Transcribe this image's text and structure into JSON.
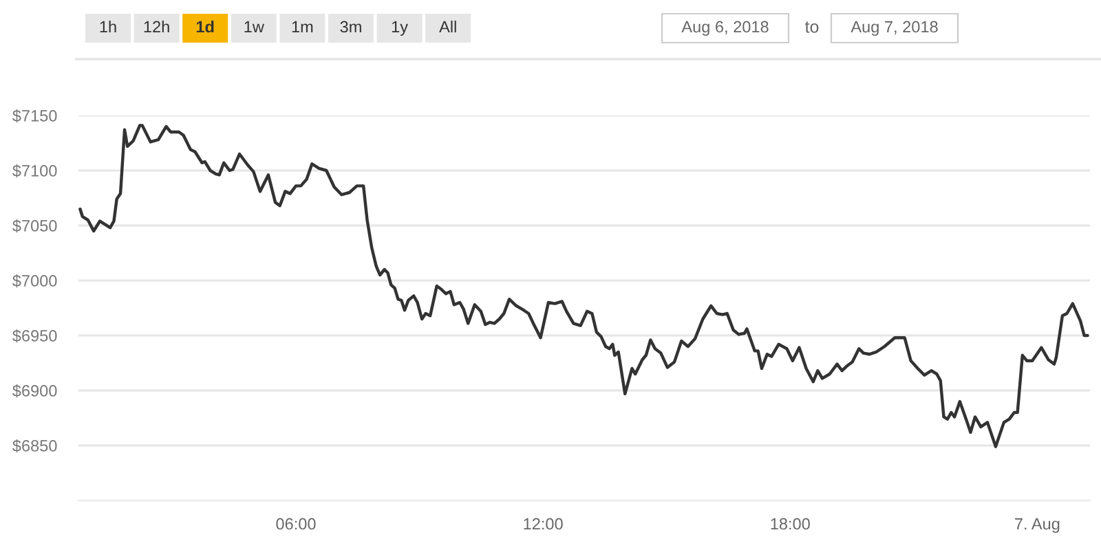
{
  "chart_data": {
    "type": "line",
    "annotations": [
      "1h",
      "12h",
      "1d",
      "1w",
      "1m",
      "3m",
      "1y",
      "All",
      "Aug 6, 2018",
      "to",
      "Aug 7, 2018"
    ],
    "x": [
      0.76,
      0.82,
      0.95,
      1.09,
      1.24,
      1.49,
      1.58,
      1.65,
      1.74,
      1.84,
      1.91,
      2.05,
      2.21,
      2.27,
      2.47,
      2.66,
      2.85,
      2.96,
      3.16,
      3.27,
      3.44,
      3.55,
      3.72,
      3.79,
      3.92,
      4.05,
      4.14,
      4.25,
      4.39,
      4.47,
      4.63,
      4.83,
      4.97,
      5.13,
      5.33,
      5.5,
      5.61,
      5.74,
      5.86,
      6.0,
      6.12,
      6.26,
      6.39,
      6.56,
      6.74,
      6.93,
      7.11,
      7.3,
      7.48,
      7.64,
      7.73,
      7.84,
      7.95,
      8.04,
      8.15,
      8.23,
      8.31,
      8.4,
      8.48,
      8.56,
      8.64,
      8.73,
      8.86,
      8.95,
      9.06,
      9.15,
      9.26,
      9.42,
      9.53,
      9.64,
      9.75,
      9.84,
      9.98,
      10.07,
      10.18,
      10.34,
      10.49,
      10.6,
      10.71,
      10.82,
      10.94,
      11.05,
      11.18,
      11.35,
      11.49,
      11.65,
      11.79,
      11.94,
      12.13,
      12.29,
      12.46,
      12.57,
      12.74,
      12.91,
      13.07,
      13.19,
      13.3,
      13.41,
      13.52,
      13.61,
      13.69,
      13.74,
      13.83,
      13.99,
      14.16,
      14.24,
      14.41,
      14.5,
      14.61,
      14.72,
      14.86,
      15.02,
      15.19,
      15.36,
      15.52,
      15.69,
      15.88,
      16.08,
      16.22,
      16.36,
      16.47,
      16.62,
      16.75,
      16.89,
      16.95,
      17.14,
      17.22,
      17.31,
      17.44,
      17.55,
      17.72,
      17.92,
      18.06,
      18.22,
      18.39,
      18.56,
      18.67,
      18.78,
      18.96,
      19.14,
      19.26,
      19.37,
      19.51,
      19.67,
      19.78,
      19.93,
      20.09,
      20.29,
      20.54,
      20.78,
      20.93,
      21.1,
      21.26,
      21.43,
      21.56,
      21.65,
      21.73,
      21.82,
      21.91,
      21.99,
      22.12,
      22.27,
      22.38,
      22.49,
      22.63,
      22.79,
      22.99,
      23.19,
      23.32,
      23.44,
      23.52,
      23.64,
      23.75,
      23.88,
      24.1,
      24.27,
      24.41,
      24.46,
      24.61,
      24.72,
      24.86,
      25.05,
      25.14,
      25.22
    ],
    "series": [
      {
        "color": "#333333",
        "values": [
          7065,
          7058,
          7055,
          7045,
          7054,
          7048,
          7054,
          7074,
          7079,
          7137,
          7122,
          7127,
          7141,
          7141,
          7126,
          7128,
          7140,
          7135,
          7135,
          7132,
          7119,
          7117,
          7107,
          7108,
          7100,
          7097,
          7096,
          7107,
          7100,
          7101,
          7115,
          7105,
          7099,
          7081,
          7096,
          7071,
          7068,
          7081,
          7079,
          7086,
          7086,
          7092,
          7106,
          7102,
          7100,
          7085,
          7078,
          7080,
          7086,
          7086,
          7055,
          7030,
          7013,
          7005,
          7010,
          7007,
          6996,
          6993,
          6983,
          6982,
          6973,
          6982,
          6986,
          6980,
          6965,
          6970,
          6968,
          6995,
          6992,
          6988,
          6990,
          6978,
          6980,
          6974,
          6961,
          6978,
          6972,
          6960,
          6962,
          6961,
          6965,
          6970,
          6983,
          6977,
          6974,
          6970,
          6959,
          6948,
          6980,
          6979,
          6981,
          6972,
          6961,
          6959,
          6972,
          6970,
          6953,
          6949,
          6940,
          6938,
          6942,
          6932,
          6935,
          6897,
          6920,
          6915,
          6928,
          6932,
          6946,
          6938,
          6934,
          6921,
          6926,
          6945,
          6940,
          6947,
          6965,
          6977,
          6970,
          6969,
          6970,
          6955,
          6951,
          6952,
          6956,
          6936,
          6936,
          6920,
          6933,
          6931,
          6942,
          6938,
          6927,
          6939,
          6920,
          6908,
          6918,
          6911,
          6915,
          6924,
          6918,
          6922,
          6926,
          6938,
          6934,
          6933,
          6935,
          6940,
          6948,
          6948,
          6927,
          6920,
          6914,
          6918,
          6915,
          6909,
          6876,
          6874,
          6880,
          6876,
          6890,
          6874,
          6862,
          6876,
          6867,
          6871,
          6849,
          6871,
          6874,
          6880,
          6880,
          6932,
          6927,
          6927,
          6939,
          6928,
          6924,
          6930,
          6968,
          6970,
          6979,
          6963,
          6950,
          6950
        ]
      }
    ],
    "xlim": [
      0.72,
      25.28
    ],
    "xticks": [
      {
        "value": 6,
        "label": "06:00"
      },
      {
        "value": 12,
        "label": "12:00"
      },
      {
        "value": 18,
        "label": "18:00"
      },
      {
        "value": 24,
        "label": "7. Aug"
      }
    ],
    "ylim": [
      6800,
      7150
    ],
    "yticks": [
      {
        "value": 6850,
        "label": "$6850"
      },
      {
        "value": 6900,
        "label": "$6900"
      },
      {
        "value": 6950,
        "label": "$6950"
      },
      {
        "value": 7000,
        "label": "$7000"
      },
      {
        "value": 7050,
        "label": "$7050"
      },
      {
        "value": 7100,
        "label": "$7100"
      },
      {
        "value": 7150,
        "label": "$7150"
      }
    ],
    "grid": "y"
  }
}
